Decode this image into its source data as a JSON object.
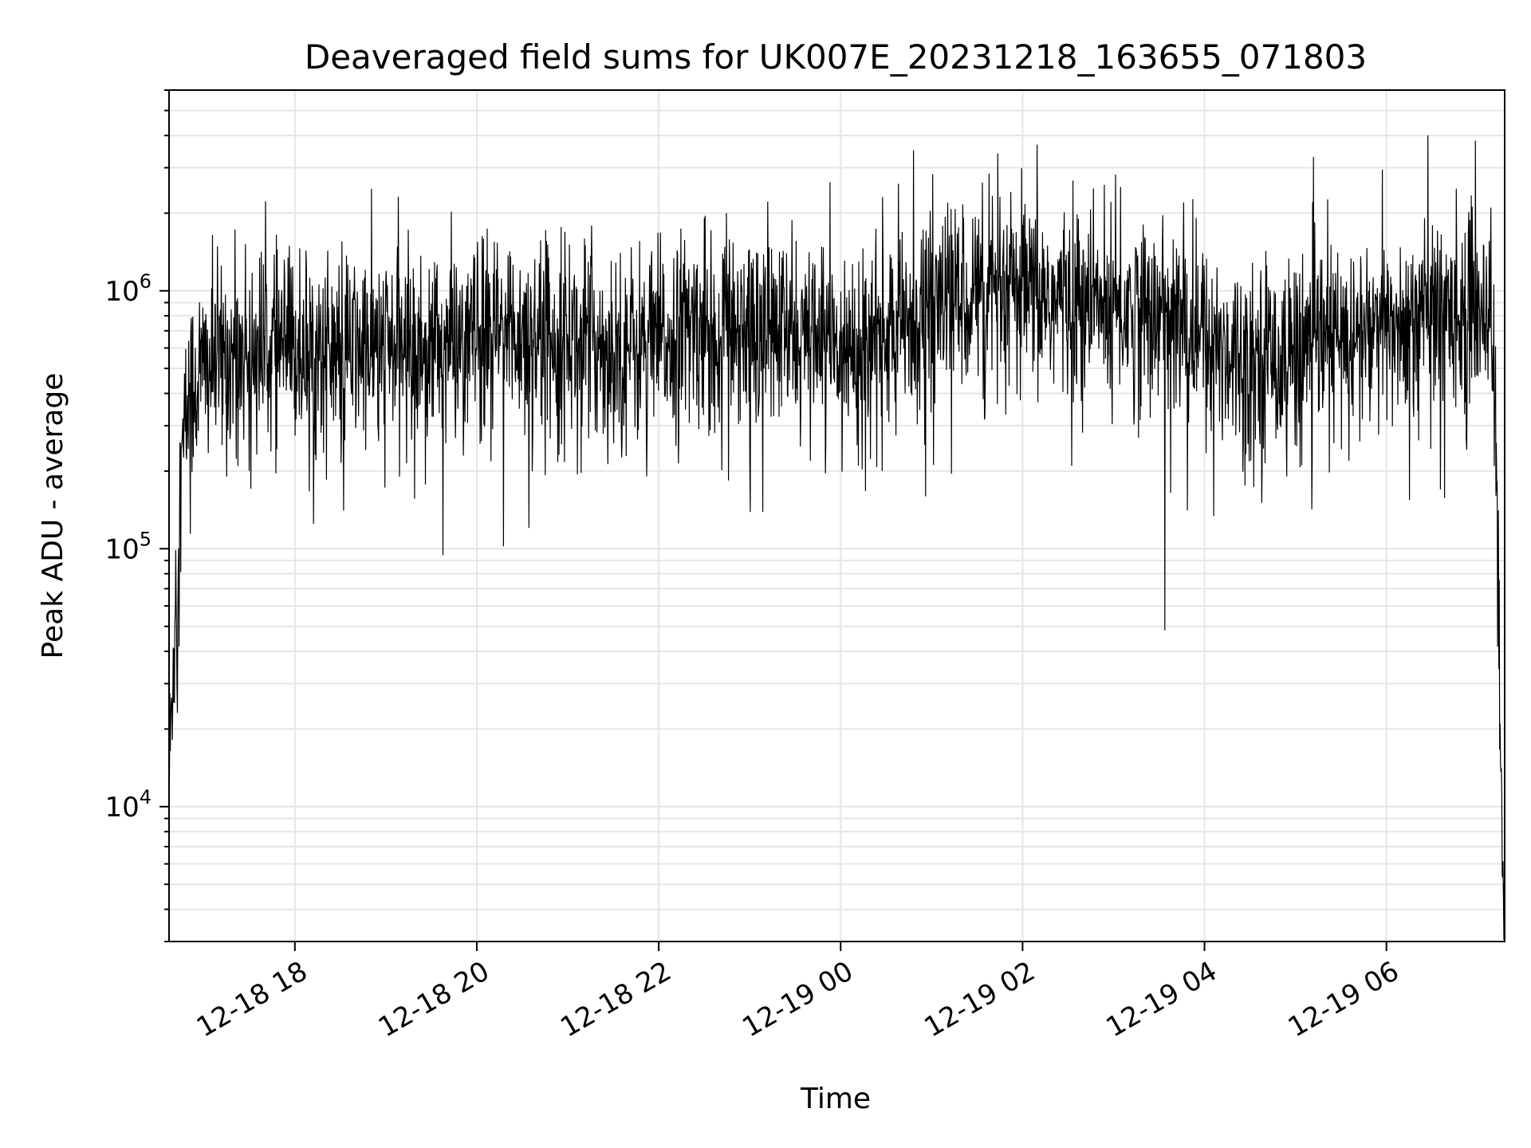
{
  "chart_data": {
    "type": "line",
    "title": "Deaveraged field sums for UK007E_20231218_163655_071803",
    "xlabel": "Time",
    "ylabel": "Peak ADU - average",
    "yscale": "log",
    "ylim": [
      3000,
      6000000
    ],
    "xlim": [
      "2023-12-18T16:37:00",
      "2023-12-19T07:18:00"
    ],
    "grid": true,
    "line_color": "#000000",
    "x_ticks": [
      {
        "t": "2023-12-18T18:00:00",
        "label": "12-18 18"
      },
      {
        "t": "2023-12-18T20:00:00",
        "label": "12-18 20"
      },
      {
        "t": "2023-12-18T22:00:00",
        "label": "12-18 22"
      },
      {
        "t": "2023-12-19T00:00:00",
        "label": "12-19 00"
      },
      {
        "t": "2023-12-19T02:00:00",
        "label": "12-19 02"
      },
      {
        "t": "2023-12-19T04:00:00",
        "label": "12-19 04"
      },
      {
        "t": "2023-12-19T06:00:00",
        "label": "12-19 06"
      }
    ],
    "y_ticks": [
      {
        "value": 10000,
        "base": "10",
        "exp": "4"
      },
      {
        "value": 100000,
        "base": "10",
        "exp": "5"
      },
      {
        "value": 1000000,
        "base": "10",
        "exp": "6"
      }
    ],
    "series": [
      {
        "x": [
          "2023-12-18T16:37:00",
          "2023-12-18T16:41:00",
          "2023-12-18T16:45:00",
          "2023-12-18T16:50:00",
          "2023-12-18T17:00:00",
          "2023-12-18T17:15:00",
          "2023-12-18T17:30:00",
          "2023-12-18T18:00:00",
          "2023-12-18T18:30:00",
          "2023-12-18T19:00:00",
          "2023-12-18T19:30:00",
          "2023-12-18T20:00:00",
          "2023-12-18T20:30:00",
          "2023-12-18T21:00:00",
          "2023-12-18T21:30:00",
          "2023-12-18T22:00:00",
          "2023-12-18T22:30:00",
          "2023-12-18T23:00:00",
          "2023-12-18T23:30:00",
          "2023-12-19T00:00:00",
          "2023-12-19T00:30:00",
          "2023-12-19T01:00:00",
          "2023-12-19T01:30:00",
          "2023-12-19T02:00:00",
          "2023-12-19T02:30:00",
          "2023-12-19T03:00:00",
          "2023-12-19T03:30:00",
          "2023-12-19T04:00:00",
          "2023-12-19T04:30:00",
          "2023-12-19T05:00:00",
          "2023-12-19T05:30:00",
          "2023-12-19T06:00:00",
          "2023-12-19T06:30:00",
          "2023-12-19T07:00:00",
          "2023-12-19T07:10:00",
          "2023-12-19T07:13:00",
          "2023-12-19T07:15:00",
          "2023-12-19T07:17:00"
        ],
        "values": [
          12000,
          60000,
          200000,
          400000,
          500000,
          550000,
          600000,
          600000,
          580000,
          600000,
          620000,
          650000,
          700000,
          680000,
          600000,
          620000,
          750000,
          750000,
          650000,
          600000,
          650000,
          900000,
          1000000,
          950000,
          900000,
          850000,
          800000,
          650000,
          550000,
          600000,
          650000,
          700000,
          850000,
          900000,
          800000,
          150000,
          20000,
          5000
        ]
      }
    ]
  }
}
